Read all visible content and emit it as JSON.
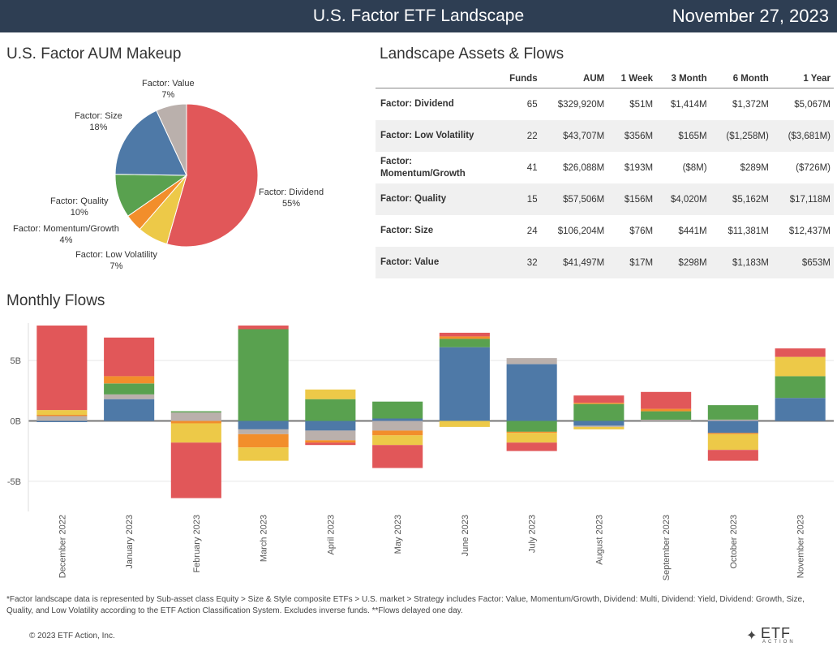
{
  "header": {
    "title": "U.S. Factor ETF Landscape",
    "date": "November 27, 2023"
  },
  "pie_title": "U.S. Factor AUM Makeup",
  "table_title": "Landscape Assets & Flows",
  "monthly_title": "Monthly Flows",
  "colors": {
    "Factor: Dividend": "#e15759",
    "Factor: Low Volatility": "#edc948",
    "Factor: Momentum/Growth": "#f28e2b",
    "Factor: Quality": "#59a14f",
    "Factor: Size": "#4e79a7",
    "Factor: Value": "#bab0ac"
  },
  "table": {
    "headers": [
      "",
      "Funds",
      "AUM",
      "1 Week",
      "3 Month",
      "6 Month",
      "1 Year"
    ],
    "rows": [
      [
        "Factor: Dividend",
        "65",
        "$329,920M",
        "$51M",
        "$1,414M",
        "$1,372M",
        "$5,067M"
      ],
      [
        "Factor: Low Volatility",
        "22",
        "$43,707M",
        "$356M",
        "$165M",
        "($1,258M)",
        "($3,681M)"
      ],
      [
        "Factor: Momentum/Growth",
        "41",
        "$26,088M",
        "$193M",
        "($8M)",
        "$289M",
        "($726M)"
      ],
      [
        "Factor: Quality",
        "15",
        "$57,506M",
        "$156M",
        "$4,020M",
        "$5,162M",
        "$17,118M"
      ],
      [
        "Factor: Size",
        "24",
        "$106,204M",
        "$76M",
        "$441M",
        "$11,381M",
        "$12,437M"
      ],
      [
        "Factor: Value",
        "32",
        "$41,497M",
        "$17M",
        "$298M",
        "$1,183M",
        "$653M"
      ]
    ]
  },
  "chart_data": [
    {
      "type": "pie",
      "title": "U.S. Factor AUM Makeup",
      "slices": [
        {
          "label": "Factor: Dividend",
          "pct_label": "55%",
          "value": 55
        },
        {
          "label": "Factor: Low Volatility",
          "pct_label": "7%",
          "value": 7
        },
        {
          "label": "Factor: Momentum/Growth",
          "pct_label": "4%",
          "value": 4
        },
        {
          "label": "Factor: Quality",
          "pct_label": "10%",
          "value": 10
        },
        {
          "label": "Factor: Size",
          "pct_label": "18%",
          "value": 18
        },
        {
          "label": "Factor: Value",
          "pct_label": "7%",
          "value": 7
        }
      ]
    },
    {
      "type": "bar",
      "stacked": true,
      "title": "Monthly Flows",
      "ylim": [
        -7.5,
        8.1
      ],
      "yticks": [
        -5,
        0,
        5
      ],
      "ytick_labels": [
        "-5B",
        "0B",
        "5B"
      ],
      "grid": true,
      "categories": [
        "December 2022",
        "January 2023",
        "February 2023",
        "March 2023",
        "April 2023",
        "May 2023",
        "June 2023",
        "July 2023",
        "August 2023",
        "September 2023",
        "October 2023",
        "November 2023"
      ],
      "series": [
        {
          "name": "Factor: Size",
          "values": [
            -0.1,
            1.8,
            0.0,
            -0.7,
            -0.8,
            0.2,
            6.1,
            4.7,
            -0.4,
            0.0,
            -1.0,
            1.9
          ]
        },
        {
          "name": "Factor: Value",
          "values": [
            0.4,
            0.4,
            0.7,
            -0.4,
            -0.8,
            -0.8,
            0.0,
            0.5,
            -0.1,
            0.1,
            0.1,
            0.0
          ]
        },
        {
          "name": "Factor: Quality",
          "values": [
            0.0,
            0.9,
            0.1,
            7.6,
            1.8,
            1.4,
            0.7,
            -0.9,
            1.4,
            0.7,
            1.2,
            1.8
          ]
        },
        {
          "name": "Factor: Momentum/Growth",
          "values": [
            0.1,
            0.6,
            -0.2,
            -1.1,
            -0.2,
            -0.4,
            0.2,
            -0.1,
            0.1,
            0.2,
            -0.1,
            0.0
          ]
        },
        {
          "name": "Factor: Low Volatility",
          "values": [
            0.4,
            0.0,
            -1.6,
            -1.1,
            0.8,
            -0.8,
            -0.5,
            -0.8,
            -0.2,
            0.0,
            -1.3,
            1.6
          ]
        },
        {
          "name": "Factor: Dividend",
          "values": [
            7.0,
            3.2,
            -4.6,
            0.3,
            -0.2,
            -1.9,
            0.3,
            -0.7,
            0.6,
            1.4,
            -0.9,
            0.7
          ]
        }
      ]
    }
  ],
  "footnote": "*Factor landscape data is represented by Sub-asset class Equity > Size & Style composite ETFs > U.S. market > Strategy includes Factor: Value, Momentum/Growth, Dividend: Multi, Dividend: Yield, Dividend: Growth, Size, Quality, and Low Volatility according to the ETF Action Classification System. Excludes inverse funds. **Flows delayed one day.",
  "copyright": "© 2023 ETF Action, Inc.",
  "logo": {
    "text": "ETF",
    "sub": "ACTION",
    "icon": "etf-action-logo-icon"
  }
}
